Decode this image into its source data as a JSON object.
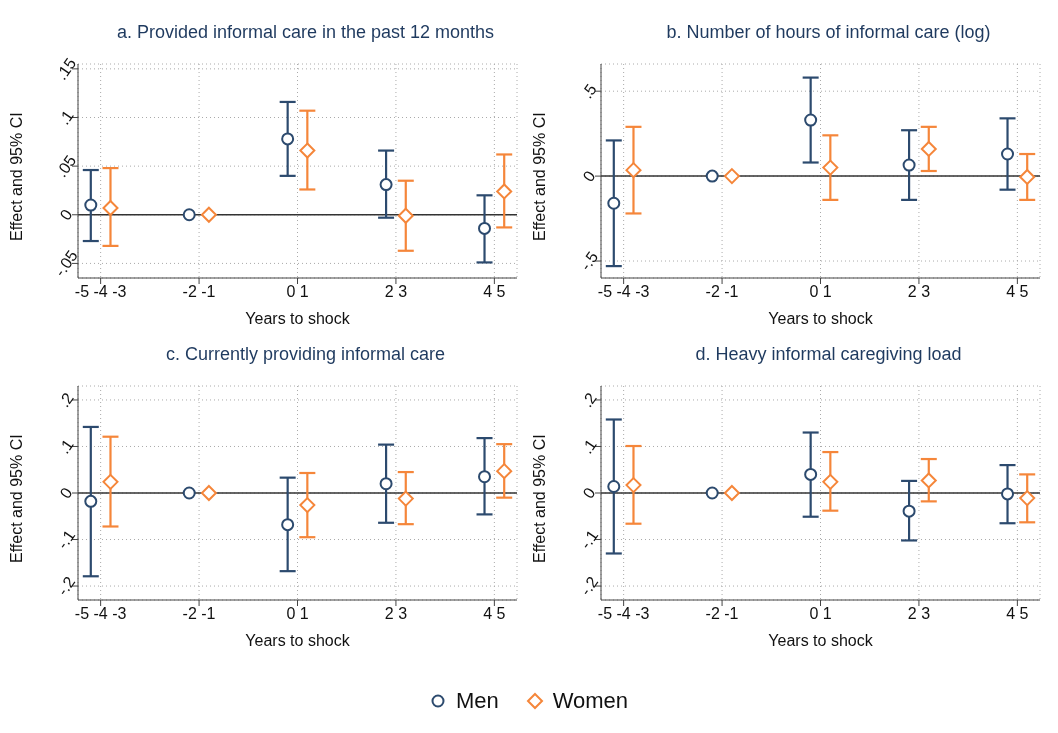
{
  "chart_data": [
    {
      "type": "scatter",
      "title": "a. Provided informal care in the past 12 months",
      "xlabel": "Years to shock",
      "ylabel": "Effect and 95% CI",
      "categories": [
        "-5 -4 -3",
        "-2 -1",
        "0 1",
        "2 3",
        "4 5"
      ],
      "ylim": [
        -0.065,
        0.155
      ],
      "yticks": [
        {
          "value": -0.05,
          "label": "-.05"
        },
        {
          "value": 0,
          "label": "0"
        },
        {
          "value": 0.05,
          "label": ".05"
        },
        {
          "value": 0.1,
          "label": ".1"
        },
        {
          "value": 0.15,
          "label": ".15"
        }
      ],
      "grid": true,
      "legend": "bottom",
      "ref_lines": [
        {
          "axis": "y",
          "value": 0,
          "color": "#333333"
        }
      ],
      "series": [
        {
          "name": "Men",
          "color": "#2c4a6e",
          "marker": "circle",
          "values": [
            0.01,
            0,
            0.078,
            0.031,
            -0.014
          ],
          "errors": [
            [
              -0.027,
              0.046
            ],
            null,
            [
              0.04,
              0.116
            ],
            [
              -0.003,
              0.066
            ],
            [
              -0.049,
              0.02
            ]
          ]
        },
        {
          "name": "Women",
          "color": "#f5863a",
          "marker": "diamond",
          "values": [
            0.007,
            0,
            0.066,
            -0.001,
            0.024
          ],
          "errors": [
            [
              -0.032,
              0.048
            ],
            null,
            [
              0.026,
              0.107
            ],
            [
              -0.037,
              0.035
            ],
            [
              -0.013,
              0.062
            ]
          ]
        }
      ]
    },
    {
      "type": "scatter",
      "title": "b. Number of hours of informal care (log)",
      "xlabel": "Years to shock",
      "ylabel": "Effect and 95% CI",
      "categories": [
        "-5 -4 -3",
        "-2 -1",
        "0 1",
        "2 3",
        "4 5"
      ],
      "ylim": [
        -0.6,
        0.66
      ],
      "yticks": [
        {
          "value": -0.5,
          "label": "-.5"
        },
        {
          "value": 0,
          "label": "0"
        },
        {
          "value": 0.5,
          "label": ".5"
        }
      ],
      "grid": true,
      "ref_lines": [
        {
          "axis": "y",
          "value": 0,
          "color": "#333333"
        }
      ],
      "series": [
        {
          "color": "#2c4a6e",
          "marker": "circle",
          "values": [
            -0.16,
            0,
            0.33,
            0.065,
            0.13
          ],
          "errors": [
            [
              -0.53,
              0.21
            ],
            null,
            [
              0.08,
              0.58
            ],
            [
              -0.14,
              0.27
            ],
            [
              -0.08,
              0.34
            ]
          ]
        },
        {
          "color": "#f5863a",
          "marker": "diamond",
          "values": [
            0.035,
            0,
            0.05,
            0.16,
            -0.005
          ],
          "errors": [
            [
              -0.22,
              0.29
            ],
            null,
            [
              -0.14,
              0.24
            ],
            [
              0.03,
              0.29
            ],
            [
              -0.14,
              0.13
            ]
          ]
        }
      ]
    },
    {
      "type": "scatter",
      "title": "c. Currently providing informal care",
      "xlabel": "Years to shock",
      "ylabel": "Effect and 95% CI",
      "categories": [
        "-5 -4 -3",
        "-2 -1",
        "0 1",
        "2 3",
        "4 5"
      ],
      "ylim": [
        -0.23,
        0.23
      ],
      "yticks": [
        {
          "value": -0.2,
          "label": "-.2"
        },
        {
          "value": -0.1,
          "label": "-.1"
        },
        {
          "value": 0,
          "label": "0"
        },
        {
          "value": 0.1,
          "label": ".1"
        },
        {
          "value": 0.2,
          "label": ".2"
        }
      ],
      "grid": true,
      "ref_lines": [
        {
          "axis": "y",
          "value": 0,
          "color": "#333333"
        }
      ],
      "series": [
        {
          "color": "#2c4a6e",
          "marker": "circle",
          "values": [
            -0.018,
            0,
            -0.068,
            0.02,
            0.035
          ],
          "errors": [
            [
              -0.179,
              0.142
            ],
            null,
            [
              -0.168,
              0.033
            ],
            [
              -0.064,
              0.104
            ],
            [
              -0.046,
              0.118
            ]
          ]
        },
        {
          "color": "#f5863a",
          "marker": "diamond",
          "values": [
            0.024,
            0,
            -0.026,
            -0.012,
            0.047
          ],
          "errors": [
            [
              -0.072,
              0.121
            ],
            null,
            [
              -0.095,
              0.043
            ],
            [
              -0.067,
              0.045
            ],
            [
              -0.01,
              0.105
            ]
          ]
        }
      ]
    },
    {
      "type": "scatter",
      "title": "d. Heavy informal caregiving load",
      "xlabel": "Years to shock",
      "ylabel": "Effect and 95% CI",
      "categories": [
        "-5 -4 -3",
        "-2 -1",
        "0 1",
        "2 3",
        "4 5"
      ],
      "ylim": [
        -0.23,
        0.23
      ],
      "yticks": [
        {
          "value": -0.2,
          "label": "-.2"
        },
        {
          "value": -0.1,
          "label": "-.1"
        },
        {
          "value": 0,
          "label": "0"
        },
        {
          "value": 0.1,
          "label": ".1"
        },
        {
          "value": 0.2,
          "label": ".2"
        }
      ],
      "grid": true,
      "ref_lines": [
        {
          "axis": "y",
          "value": 0,
          "color": "#333333"
        }
      ],
      "series": [
        {
          "color": "#2c4a6e",
          "marker": "circle",
          "values": [
            0.014,
            0,
            0.04,
            -0.039,
            -0.002
          ],
          "errors": [
            [
              -0.13,
              0.158
            ],
            null,
            [
              -0.051,
              0.13
            ],
            [
              -0.102,
              0.026
            ],
            [
              -0.065,
              0.06
            ]
          ]
        },
        {
          "color": "#f5863a",
          "marker": "diamond",
          "values": [
            0.017,
            0,
            0.024,
            0.027,
            -0.011
          ],
          "errors": [
            [
              -0.066,
              0.101
            ],
            null,
            [
              -0.038,
              0.088
            ],
            [
              -0.018,
              0.073
            ],
            [
              -0.063,
              0.04
            ]
          ]
        }
      ]
    }
  ]
}
